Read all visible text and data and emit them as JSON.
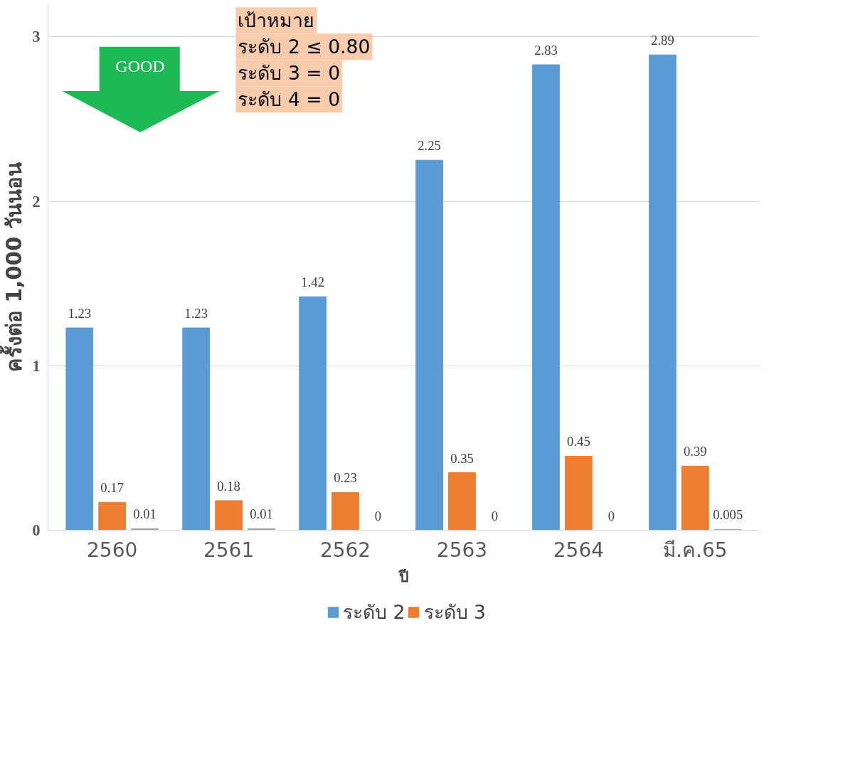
{
  "chart_data": {
    "type": "bar",
    "categories": [
      "2560",
      "2561",
      "2562",
      "2563",
      "2564",
      "มี.ค.65"
    ],
    "series": [
      {
        "name": "ระดับ 2",
        "color": "#5b9bd5",
        "values": [
          1.23,
          1.23,
          1.42,
          2.25,
          2.83,
          2.89
        ]
      },
      {
        "name": "ระดับ 3",
        "color": "#ed7d31",
        "values": [
          0.17,
          0.18,
          0.23,
          0.35,
          0.45,
          0.39
        ]
      },
      {
        "color": "#a5a5a5",
        "values": [
          0.01,
          0.01,
          0,
          0,
          0,
          0.005
        ]
      }
    ],
    "ylabel": "ครั้งต่อ 1,000 วันนอน",
    "xlabel": "ปี",
    "ylim": [
      0,
      3.2
    ],
    "yticks": [
      0,
      1,
      2,
      3
    ],
    "grid": "y",
    "legend": "bottom",
    "data_labels": true,
    "annotations": [
      "GOOD",
      "เป้าหมาย",
      "ระดับ 2 ≤ 0.80",
      "ระดับ 3 = 0",
      "ระดับ 4 = 0"
    ]
  }
}
